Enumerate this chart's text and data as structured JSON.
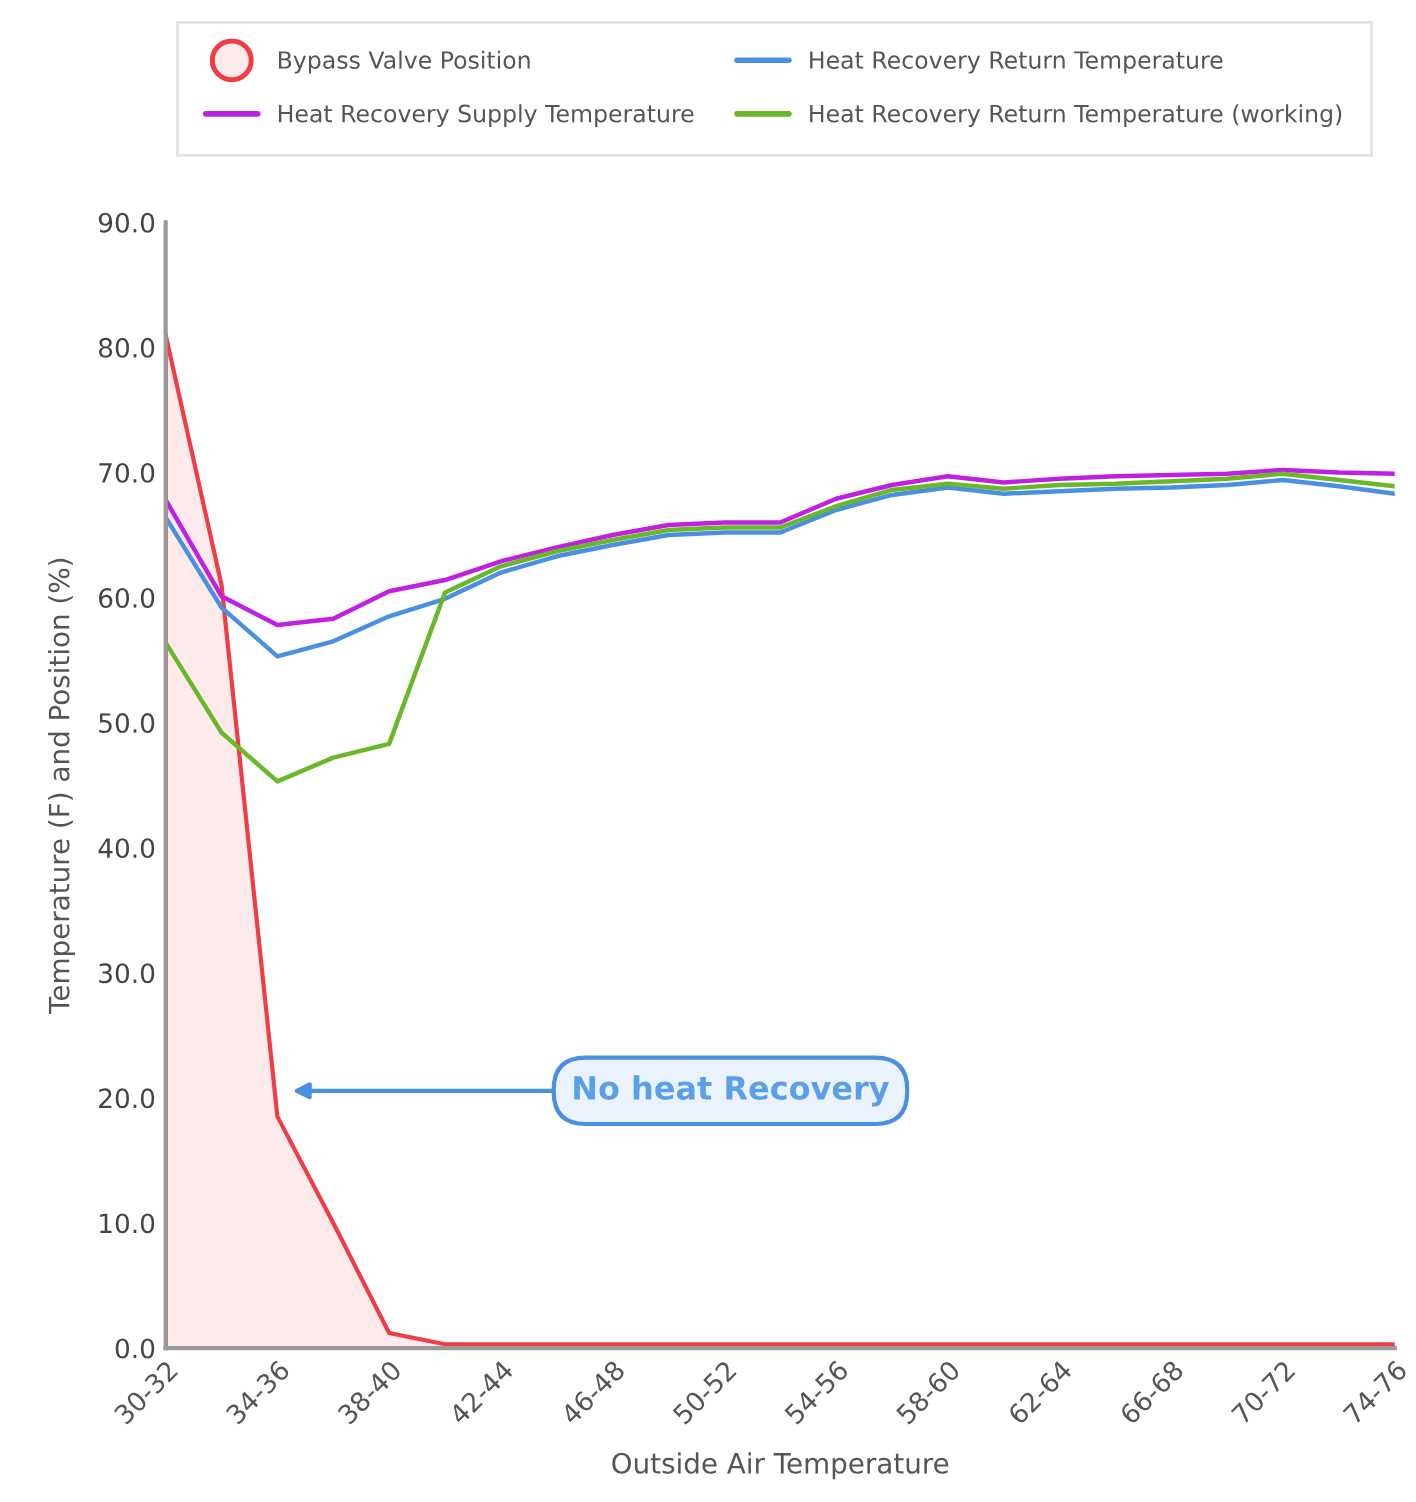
{
  "chart_data": {
    "type": "line",
    "categories": [
      "30-32",
      null,
      "34-36",
      null,
      "38-40",
      null,
      "42-44",
      null,
      "46-48",
      null,
      "50-52",
      null,
      "54-56",
      null,
      "58-60",
      null,
      "62-64",
      null,
      "66-68",
      null,
      "70-72",
      null,
      "74-76"
    ],
    "series": [
      {
        "name": "Bypass Valve Position",
        "type": "area",
        "color": "#f03c44",
        "values": [
          81,
          61,
          18.5,
          10,
          1.2,
          0.3,
          0.3,
          0.3,
          0.3,
          0.3,
          0.3,
          0.3,
          0.3,
          0.3,
          0.3,
          0.3,
          0.3,
          0.3,
          0.3,
          0.3,
          0.3,
          0.3,
          0.3
        ]
      },
      {
        "name": "Heat Recovery Return Temperature",
        "color": "#4a90e2",
        "values": [
          66.4,
          59.2,
          55.3,
          56.5,
          58.5,
          59.9,
          62.0,
          63.3,
          64.2,
          65.0,
          65.2,
          65.2,
          67.0,
          68.2,
          68.8,
          68.3,
          68.5,
          68.7,
          68.8,
          69.0,
          69.4,
          68.9,
          68.3
        ]
      },
      {
        "name": "Heat Recovery Supply Temperature",
        "color": "#c020e0",
        "values": [
          67.8,
          60.1,
          57.8,
          58.3,
          60.5,
          61.4,
          62.9,
          64.0,
          65.0,
          65.8,
          66.0,
          66.0,
          67.9,
          69.0,
          69.7,
          69.2,
          69.5,
          69.7,
          69.8,
          69.9,
          70.2,
          70.0,
          69.9
        ]
      },
      {
        "name": "Heat Recovery Return Temperature (working)",
        "color": "#6ab82a",
        "values": [
          56.4,
          49.2,
          45.3,
          47.2,
          48.3,
          60.4,
          62.5,
          63.7,
          64.6,
          65.4,
          65.6,
          65.6,
          67.3,
          68.6,
          69.1,
          68.7,
          69.0,
          69.1,
          69.3,
          69.5,
          69.9,
          69.4,
          68.9
        ]
      }
    ],
    "xlabel": "Outside Air Temperature",
    "ylabel": "Temperature (F) and Position (%)",
    "ylim": [
      0,
      90
    ],
    "yticks": [
      {
        "value": 0,
        "label": "0.0"
      },
      {
        "value": 10,
        "label": "10.0"
      },
      {
        "value": 20,
        "label": "20.0"
      },
      {
        "value": 30,
        "label": "30.0"
      },
      {
        "value": 40,
        "label": "40.0"
      },
      {
        "value": 50,
        "label": "50.0"
      },
      {
        "value": 60,
        "label": "60.0"
      },
      {
        "value": 70,
        "label": "70.0"
      },
      {
        "value": 80,
        "label": "80.0"
      },
      {
        "value": 90,
        "label": "90.0"
      }
    ],
    "annotations": [
      "No heat Recovery"
    ],
    "grid": false,
    "legend": "top",
    "marker": "none",
    "line_style": "solid"
  }
}
